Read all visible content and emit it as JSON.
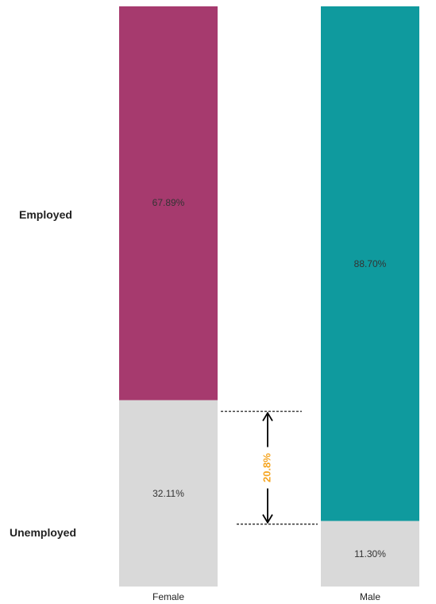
{
  "chart_data": {
    "type": "bar",
    "stacked": true,
    "normalized": true,
    "categories": [
      "Female",
      "Male"
    ],
    "series": [
      {
        "name": "Unemployed",
        "values": [
          32.11,
          11.3
        ],
        "labels": [
          "32.11%",
          "11.30%"
        ],
        "color": "#d9d9d9"
      },
      {
        "name": "Employed",
        "values": [
          67.89,
          88.7
        ],
        "labels": [
          "67.89%",
          "88.70%"
        ],
        "color_by_category": [
          "#a63a6e",
          "#0f9a9e"
        ]
      }
    ],
    "row_labels": [
      "Employed",
      "Unemployed"
    ],
    "annotation": {
      "text": "20.8%",
      "color": "#f5a623",
      "from_value": 32.11,
      "to_value": 11.3
    },
    "ylim": [
      0,
      100
    ]
  }
}
